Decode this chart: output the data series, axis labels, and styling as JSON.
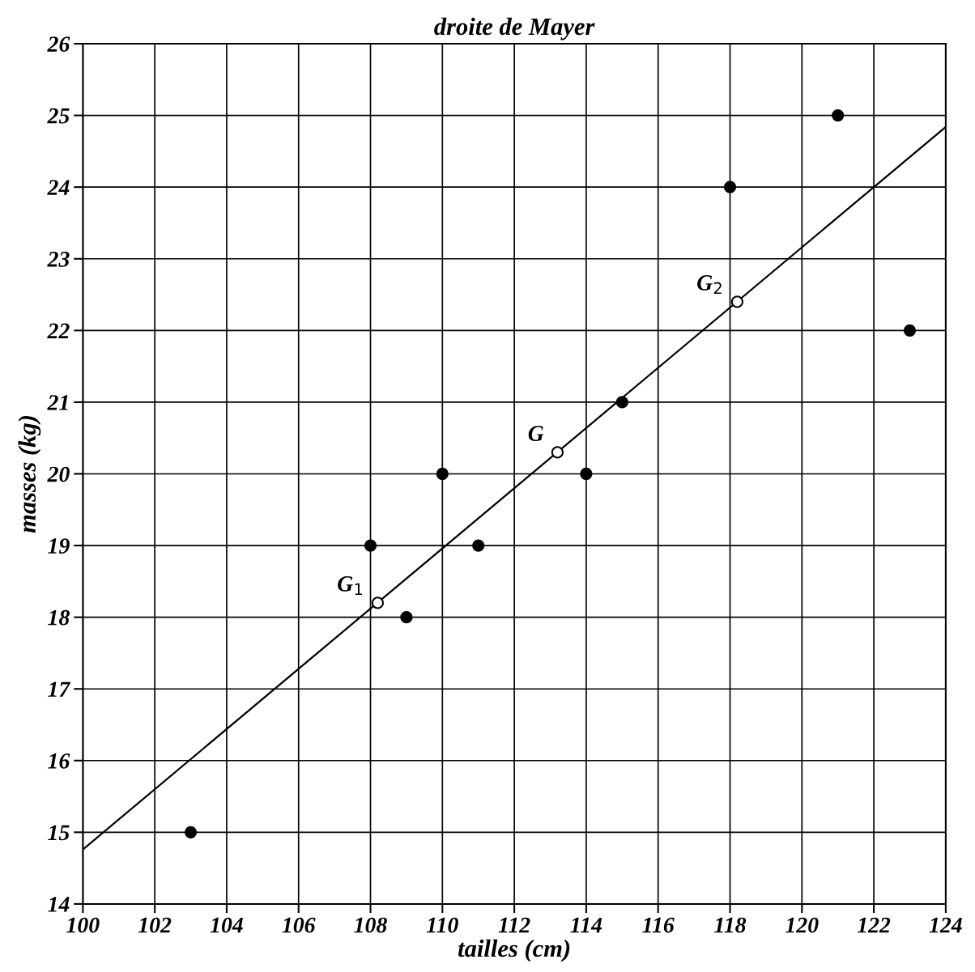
{
  "chart_data": {
    "type": "scatter",
    "title": "droite de Mayer",
    "xlabel": "tailles (cm)",
    "ylabel": "masses (kg)",
    "xlim": [
      100,
      124
    ],
    "ylim": [
      14,
      26
    ],
    "xticks": [
      100,
      102,
      104,
      106,
      108,
      110,
      112,
      114,
      116,
      118,
      120,
      122,
      124
    ],
    "yticks": [
      14,
      15,
      16,
      17,
      18,
      19,
      20,
      21,
      22,
      23,
      24,
      25,
      26
    ],
    "grid": true,
    "series": [
      {
        "type": "line",
        "color": "#000000",
        "marker": "none",
        "x": [
          100,
          124
        ],
        "values": [
          14.76,
          24.84
        ]
      },
      {
        "color": "#000000",
        "marker": "circle",
        "x": [
          103,
          108,
          109,
          110,
          111,
          114,
          115,
          118,
          121,
          123
        ],
        "values": [
          15,
          19,
          18,
          20,
          19,
          20,
          21,
          24,
          25,
          22
        ]
      },
      {
        "color": "#ffffff",
        "marker": "circle",
        "x": [
          108.2,
          113.2,
          118.2
        ],
        "values": [
          18.2,
          20.3,
          22.4
        ]
      }
    ],
    "annotations": [
      {
        "text": "G$_{1}$",
        "x": 108.2,
        "y": 18.2
      },
      {
        "text": "G",
        "x": 113.2,
        "y": 20.3
      },
      {
        "text": "G$_{2}$",
        "x": 118.2,
        "y": 22.4
      }
    ]
  }
}
